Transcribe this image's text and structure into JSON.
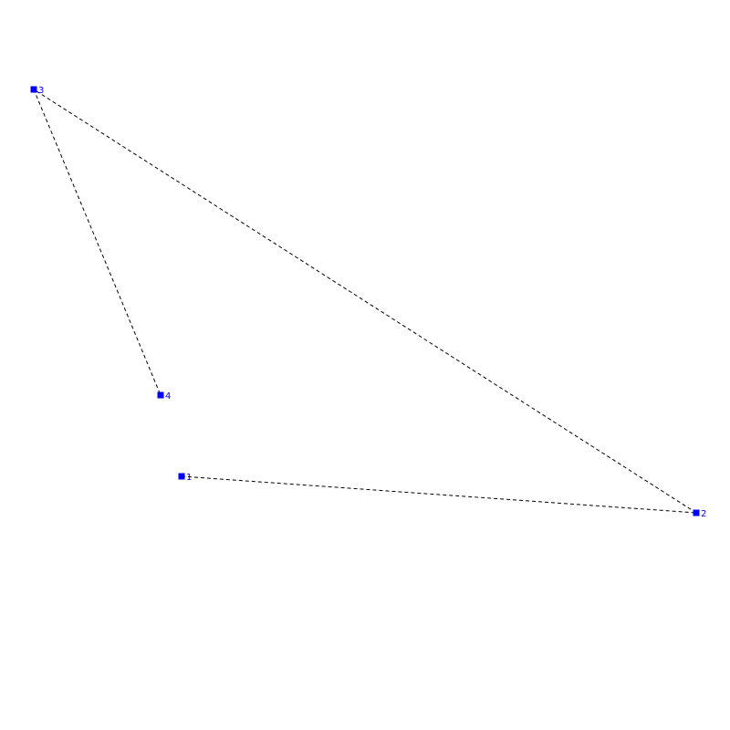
{
  "diagram": {
    "node_color": "#0000ff",
    "edge_color": "#000000",
    "edge_style": "dashed",
    "nodes": [
      {
        "id": "1",
        "label": "1"
      },
      {
        "id": "2",
        "label": "2"
      },
      {
        "id": "3",
        "label": "3"
      },
      {
        "id": "4",
        "label": "4"
      }
    ],
    "edges": [
      {
        "from": "1",
        "to": "2"
      },
      {
        "from": "2",
        "to": "3"
      },
      {
        "from": "3",
        "to": "4"
      }
    ]
  }
}
